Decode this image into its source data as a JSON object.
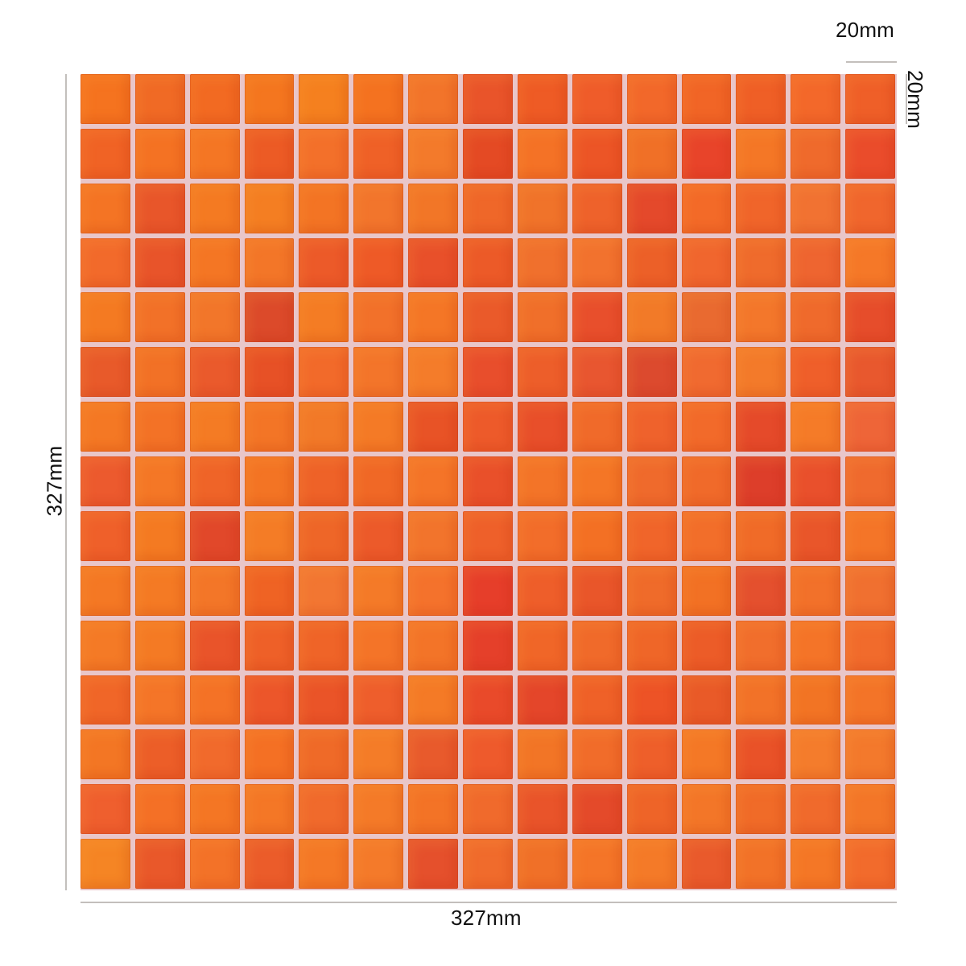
{
  "product": {
    "rows": 15,
    "columns": 15,
    "grout_color": "#e9c6c9",
    "tile_colors": [
      [
        "#f5731f",
        "#f06a25",
        "#f26a22",
        "#f4761f",
        "#f5801f",
        "#f47220",
        "#f2742a",
        "#e9542a",
        "#ee5b25",
        "#ef5c2a",
        "#f2682a",
        "#f16526",
        "#ef5f26",
        "#f3682a",
        "#ef5f28"
      ],
      [
        "#f06325",
        "#f47223",
        "#f47624",
        "#ec5b25",
        "#f3702a",
        "#ef6127",
        "#f37a2b",
        "#e44a24",
        "#f47226",
        "#ec5526",
        "#f07027",
        "#e8442a",
        "#f47726",
        "#ef6a2c",
        "#ea4c2b"
      ],
      [
        "#f47424",
        "#e8562a",
        "#f47a22",
        "#f47e22",
        "#f37424",
        "#f2752c",
        "#f27627",
        "#ef6729",
        "#f0732a",
        "#ee622b",
        "#e4492b",
        "#f36a28",
        "#f0652a",
        "#f17232",
        "#f0662d"
      ],
      [
        "#f26a2b",
        "#e8542a",
        "#f47624",
        "#f37628",
        "#ec5a29",
        "#ee5a27",
        "#e8502a",
        "#ec5a28",
        "#f0702d",
        "#f2722e",
        "#ec6028",
        "#f0662e",
        "#ef6b2c",
        "#ee6530",
        "#f57828"
      ],
      [
        "#f47a22",
        "#f27128",
        "#f2762a",
        "#dc4a2a",
        "#f47c24",
        "#f2712a",
        "#f47626",
        "#ea5a2a",
        "#f06f2a",
        "#e84f2c",
        "#f27a28",
        "#e96a30",
        "#f3772b",
        "#ef6a2c",
        "#e64d2b"
      ],
      [
        "#e85a2a",
        "#f27126",
        "#ea5a2c",
        "#e75126",
        "#f26a2a",
        "#f3752a",
        "#f47c2a",
        "#e84e2c",
        "#ed5e2a",
        "#e85630",
        "#dc4a2e",
        "#f06a30",
        "#f37a2a",
        "#ef5f2a",
        "#e8582e"
      ],
      [
        "#f47824",
        "#f37226",
        "#f47b24",
        "#f37526",
        "#f27928",
        "#f47a26",
        "#e85326",
        "#ed5a2a",
        "#e84f2a",
        "#f06a2a",
        "#ef622c",
        "#f26a2a",
        "#e54a2a",
        "#f57b28",
        "#ee6538"
      ],
      [
        "#ec5a2e",
        "#f47726",
        "#ef6428",
        "#f37424",
        "#ee6228",
        "#f06826",
        "#f47428",
        "#e9502a",
        "#f37428",
        "#f47626",
        "#ef6a2c",
        "#f06a2a",
        "#dd3e2a",
        "#e9502c",
        "#ef6a2e"
      ],
      [
        "#ef602a",
        "#f47a22",
        "#e1482a",
        "#f47c26",
        "#ee6628",
        "#ec5a2a",
        "#f2742c",
        "#ee602a",
        "#f26d2a",
        "#f37024",
        "#f0652a",
        "#f26e2a",
        "#f06b28",
        "#e9562a",
        "#f47528"
      ],
      [
        "#f47824",
        "#f47a24",
        "#f37628",
        "#ef6324",
        "#f27632",
        "#f47a28",
        "#f4722c",
        "#e63e2a",
        "#ee5e2a",
        "#e9562a",
        "#ef6b2a",
        "#f27124",
        "#e4502e",
        "#f2712a",
        "#f07030"
      ],
      [
        "#f47a26",
        "#f47a24",
        "#e9542a",
        "#ee6028",
        "#ef6428",
        "#f47428",
        "#f37428",
        "#e5402a",
        "#f06628",
        "#f06a2a",
        "#ef6628",
        "#ec5c28",
        "#f16e2c",
        "#f47428",
        "#f16b2c"
      ],
      [
        "#f06628",
        "#f47528",
        "#f47226",
        "#ec562a",
        "#ea5428",
        "#ee5e2c",
        "#f47a26",
        "#e94a2a",
        "#e4462a",
        "#ef6128",
        "#ed5326",
        "#e95a28",
        "#f27228",
        "#f27424",
        "#f37428"
      ],
      [
        "#f37624",
        "#ec5e28",
        "#f16a2c",
        "#f47024",
        "#ef6a28",
        "#f47c28",
        "#e85a2c",
        "#ee5a2c",
        "#f27526",
        "#f16c2a",
        "#ee5f2a",
        "#f47826",
        "#e95228",
        "#f47c2c",
        "#f3792c"
      ],
      [
        "#ef5f2e",
        "#f47026",
        "#f47624",
        "#f47726",
        "#f06a2c",
        "#f47a28",
        "#f37326",
        "#f06a2c",
        "#e9542a",
        "#e44a2a",
        "#ee6428",
        "#f37628",
        "#f06b28",
        "#f06a2c",
        "#f37628"
      ],
      [
        "#f58524",
        "#e9582a",
        "#f37228",
        "#eb5c2a",
        "#f47826",
        "#f47a2a",
        "#e5502c",
        "#f06b2c",
        "#f07028",
        "#f47528",
        "#f47a28",
        "#e95a2c",
        "#f27228",
        "#f47726",
        "#f26b2c"
      ]
    ]
  },
  "dimensions": {
    "tile_width_label": "20mm",
    "tile_height_label": "20mm",
    "sheet_height_label": "327mm",
    "sheet_width_label": "327mm"
  }
}
